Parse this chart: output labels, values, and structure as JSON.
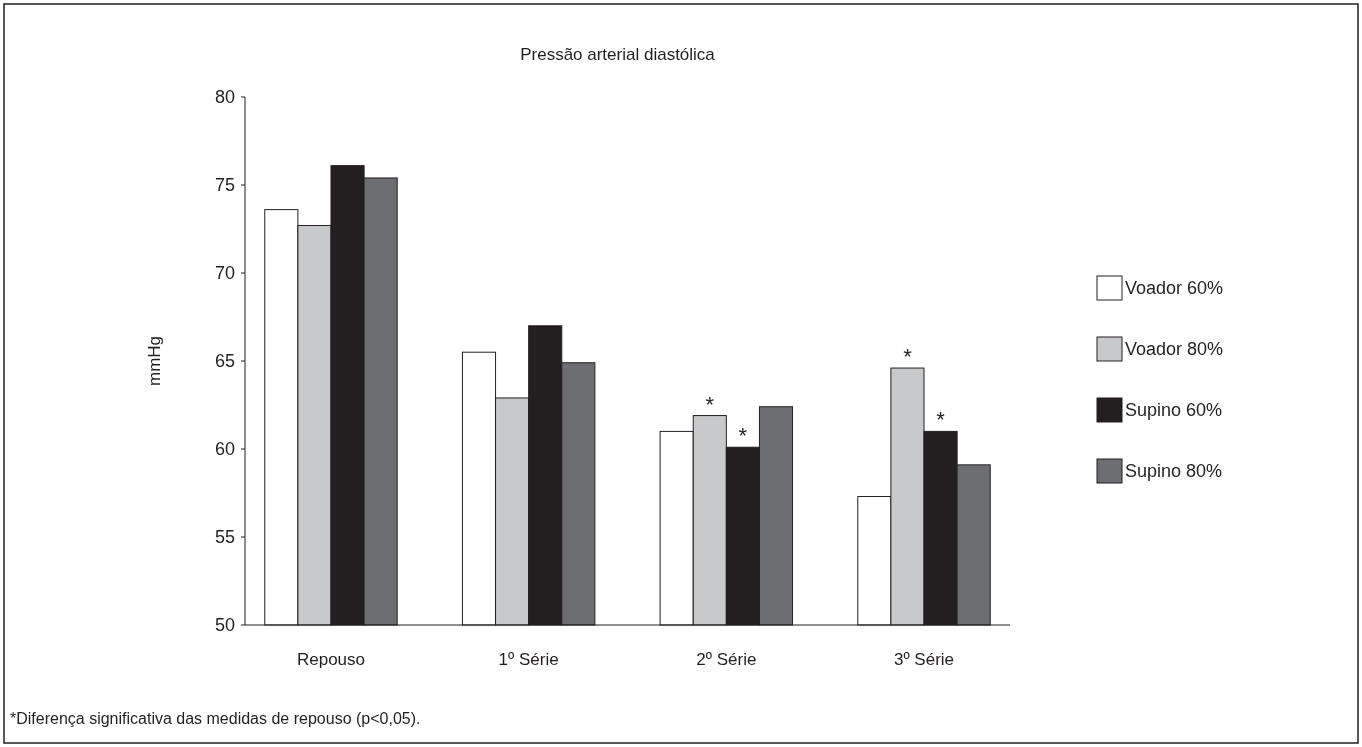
{
  "chart_data": {
    "type": "bar",
    "title": "Pressão arterial diastólica",
    "ylabel": "mmHg",
    "categories": [
      "Repouso",
      "1º Série",
      "2º Série",
      "3º Série"
    ],
    "series": [
      {
        "name": "Voador 60%",
        "color": "#ffffff",
        "values": [
          73.6,
          65.5,
          61.0,
          57.3
        ]
      },
      {
        "name": "Voador 80%",
        "color": "#c8c9cb",
        "values": [
          72.7,
          62.9,
          61.9,
          64.6
        ]
      },
      {
        "name": "Supino 60%",
        "color": "#231f20",
        "values": [
          76.1,
          67.0,
          60.1,
          61.0
        ]
      },
      {
        "name": "Supino 80%",
        "color": "#6d6e71",
        "values": [
          75.4,
          64.9,
          62.4,
          59.1
        ]
      }
    ],
    "ylim": [
      50,
      80
    ],
    "yticks": [
      50,
      55,
      60,
      65,
      70,
      75,
      80
    ],
    "grid": false,
    "legend": "right",
    "annotations": [
      {
        "text": "*",
        "x": "2º Série",
        "y": 61.9
      },
      {
        "text": "*",
        "x": "2º Série",
        "y": 60.1
      },
      {
        "text": "*",
        "x": "3º Série",
        "y": 64.6
      },
      {
        "text": "*",
        "x": "3º Série",
        "y": 61.0
      },
      "*Diferença significativa das medidas de repouso (p<0,05)."
    ]
  }
}
